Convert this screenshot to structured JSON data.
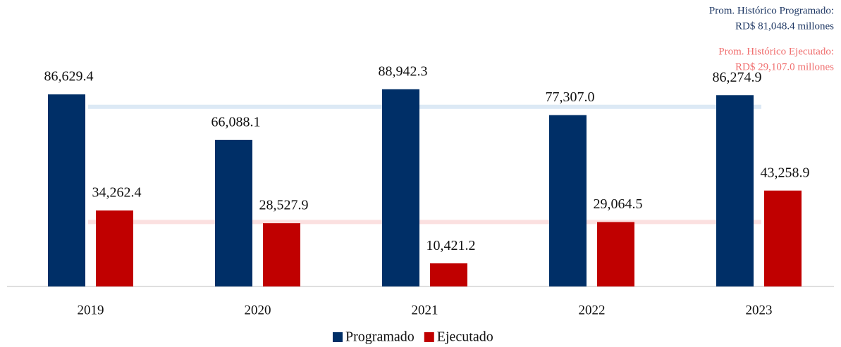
{
  "chart_data": {
    "type": "bar",
    "categories": [
      "2019",
      "2020",
      "2021",
      "2022",
      "2023"
    ],
    "series": [
      {
        "name": "Programado",
        "color": "#002f67",
        "values": [
          86629.4,
          66088.1,
          88942.3,
          77307.0,
          86274.9
        ],
        "value_labels": [
          "86,629.4",
          "66,088.1",
          "88,942.3",
          "77,307.0",
          "86,274.9"
        ]
      },
      {
        "name": "Ejecutado",
        "color": "#c00000",
        "values": [
          34262.4,
          28527.9,
          10421.2,
          29064.5,
          43258.9
        ],
        "value_labels": [
          "34,262.4",
          "28,527.9",
          "10,421.2",
          "29,064.5",
          "43,258.9"
        ]
      }
    ],
    "reference_lines": [
      {
        "value": 81048.4,
        "color": "#dce9f5",
        "text_color": "#1f3864",
        "annotation": [
          "Prom. Histórico Programado:",
          "RD$ 81,048.4  millones"
        ]
      },
      {
        "value": 29107.0,
        "color": "#fbe0e0",
        "text_color": "#f07070",
        "annotation": [
          "Prom. Histórico Ejecutado:",
          "RD$ 29,107.0 millones"
        ]
      }
    ],
    "ylim": [
      0,
      100000
    ]
  }
}
